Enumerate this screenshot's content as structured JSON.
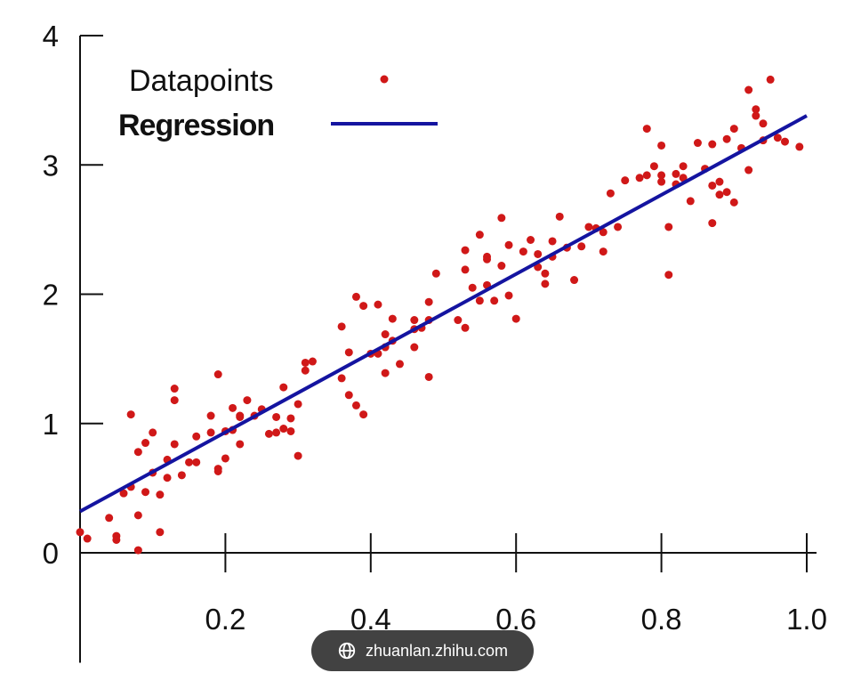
{
  "chart_data": {
    "type": "scatter",
    "title": "",
    "xlabel": "",
    "ylabel": "",
    "xlim": [
      0,
      1.0
    ],
    "ylim": [
      -0.85,
      4
    ],
    "x_ticks": [
      0.2,
      0.4,
      0.6,
      0.8,
      1.0
    ],
    "x_tick_labels": [
      "0.2",
      "0.4",
      "0.6",
      "0.8",
      "1.0"
    ],
    "y_ticks": [
      0,
      1,
      2,
      3,
      4
    ],
    "y_tick_labels": [
      "0",
      "1",
      "2",
      "3",
      "4"
    ],
    "grid": false,
    "legend": {
      "placement": "top-left",
      "datapoints_label": "Datapoints",
      "regression_label": "Regression"
    },
    "colors": {
      "points": "#d01818",
      "line": "#1414a0",
      "axis": "#111111"
    },
    "regression": {
      "name": "Regression",
      "x": [
        0,
        1.0
      ],
      "y": [
        0.32,
        3.38
      ]
    },
    "series": [
      {
        "name": "Datapoints",
        "points": [
          [
            0.0,
            0.16
          ],
          [
            0.01,
            0.11
          ],
          [
            0.04,
            0.27
          ],
          [
            0.05,
            0.13
          ],
          [
            0.05,
            0.1
          ],
          [
            0.06,
            0.46
          ],
          [
            0.07,
            0.51
          ],
          [
            0.07,
            1.07
          ],
          [
            0.08,
            0.29
          ],
          [
            0.08,
            0.78
          ],
          [
            0.08,
            0.02
          ],
          [
            0.09,
            0.47
          ],
          [
            0.09,
            0.85
          ],
          [
            0.1,
            0.93
          ],
          [
            0.1,
            0.62
          ],
          [
            0.11,
            0.45
          ],
          [
            0.11,
            0.16
          ],
          [
            0.12,
            0.58
          ],
          [
            0.12,
            0.72
          ],
          [
            0.13,
            0.84
          ],
          [
            0.13,
            1.18
          ],
          [
            0.13,
            1.27
          ],
          [
            0.14,
            0.6
          ],
          [
            0.15,
            0.7
          ],
          [
            0.16,
            0.7
          ],
          [
            0.16,
            0.9
          ],
          [
            0.18,
            0.93
          ],
          [
            0.18,
            1.06
          ],
          [
            0.19,
            0.65
          ],
          [
            0.19,
            0.63
          ],
          [
            0.19,
            1.38
          ],
          [
            0.2,
            0.73
          ],
          [
            0.2,
            0.94
          ],
          [
            0.21,
            0.95
          ],
          [
            0.21,
            1.12
          ],
          [
            0.22,
            1.05
          ],
          [
            0.22,
            1.06
          ],
          [
            0.22,
            0.84
          ],
          [
            0.23,
            1.18
          ],
          [
            0.24,
            1.06
          ],
          [
            0.25,
            1.11
          ],
          [
            0.26,
            0.92
          ],
          [
            0.27,
            0.93
          ],
          [
            0.27,
            1.05
          ],
          [
            0.28,
            0.96
          ],
          [
            0.28,
            1.28
          ],
          [
            0.29,
            1.04
          ],
          [
            0.29,
            0.94
          ],
          [
            0.3,
            0.75
          ],
          [
            0.3,
            1.15
          ],
          [
            0.31,
            1.47
          ],
          [
            0.31,
            1.41
          ],
          [
            0.32,
            1.48
          ],
          [
            0.36,
            1.75
          ],
          [
            0.36,
            1.35
          ],
          [
            0.37,
            1.55
          ],
          [
            0.37,
            1.22
          ],
          [
            0.38,
            1.14
          ],
          [
            0.38,
            1.98
          ],
          [
            0.39,
            1.07
          ],
          [
            0.39,
            1.91
          ],
          [
            0.4,
            1.54
          ],
          [
            0.41,
            1.54
          ],
          [
            0.41,
            1.92
          ],
          [
            0.42,
            1.59
          ],
          [
            0.42,
            1.39
          ],
          [
            0.42,
            1.69
          ],
          [
            0.43,
            1.81
          ],
          [
            0.43,
            1.64
          ],
          [
            0.44,
            1.46
          ],
          [
            0.46,
            1.59
          ],
          [
            0.46,
            1.8
          ],
          [
            0.46,
            1.73
          ],
          [
            0.47,
            1.74
          ],
          [
            0.48,
            1.8
          ],
          [
            0.48,
            1.94
          ],
          [
            0.48,
            1.36
          ],
          [
            0.49,
            2.16
          ],
          [
            0.52,
            1.8
          ],
          [
            0.53,
            1.74
          ],
          [
            0.53,
            2.34
          ],
          [
            0.53,
            2.19
          ],
          [
            0.54,
            2.05
          ],
          [
            0.55,
            1.95
          ],
          [
            0.55,
            2.46
          ],
          [
            0.56,
            2.27
          ],
          [
            0.56,
            2.29
          ],
          [
            0.56,
            2.07
          ],
          [
            0.57,
            1.95
          ],
          [
            0.58,
            2.22
          ],
          [
            0.58,
            2.59
          ],
          [
            0.59,
            1.99
          ],
          [
            0.59,
            2.38
          ],
          [
            0.6,
            1.81
          ],
          [
            0.61,
            2.33
          ],
          [
            0.62,
            2.42
          ],
          [
            0.63,
            2.31
          ],
          [
            0.63,
            2.21
          ],
          [
            0.64,
            2.16
          ],
          [
            0.64,
            2.08
          ],
          [
            0.65,
            2.41
          ],
          [
            0.65,
            2.29
          ],
          [
            0.66,
            2.6
          ],
          [
            0.67,
            2.36
          ],
          [
            0.68,
            2.11
          ],
          [
            0.69,
            2.37
          ],
          [
            0.7,
            2.52
          ],
          [
            0.71,
            2.51
          ],
          [
            0.72,
            2.48
          ],
          [
            0.72,
            2.33
          ],
          [
            0.73,
            2.78
          ],
          [
            0.74,
            2.52
          ],
          [
            0.75,
            2.88
          ],
          [
            0.77,
            2.9
          ],
          [
            0.78,
            3.28
          ],
          [
            0.78,
            2.92
          ],
          [
            0.79,
            2.99
          ],
          [
            0.8,
            2.87
          ],
          [
            0.8,
            3.15
          ],
          [
            0.8,
            2.92
          ],
          [
            0.81,
            2.52
          ],
          [
            0.81,
            2.15
          ],
          [
            0.82,
            2.93
          ],
          [
            0.82,
            2.85
          ],
          [
            0.83,
            2.9
          ],
          [
            0.83,
            2.99
          ],
          [
            0.84,
            2.72
          ],
          [
            0.85,
            3.17
          ],
          [
            0.86,
            2.97
          ],
          [
            0.87,
            2.84
          ],
          [
            0.87,
            2.55
          ],
          [
            0.87,
            3.16
          ],
          [
            0.88,
            2.77
          ],
          [
            0.88,
            2.87
          ],
          [
            0.89,
            3.2
          ],
          [
            0.89,
            2.79
          ],
          [
            0.9,
            3.28
          ],
          [
            0.9,
            2.71
          ],
          [
            0.91,
            3.13
          ],
          [
            0.92,
            2.96
          ],
          [
            0.92,
            3.58
          ],
          [
            0.93,
            3.38
          ],
          [
            0.93,
            3.43
          ],
          [
            0.94,
            3.32
          ],
          [
            0.94,
            3.19
          ],
          [
            0.95,
            3.66
          ],
          [
            0.96,
            3.21
          ],
          [
            0.97,
            3.18
          ],
          [
            0.99,
            3.14
          ]
        ]
      }
    ]
  },
  "watermark": {
    "text": "zhuanlan.zhihu.com"
  }
}
